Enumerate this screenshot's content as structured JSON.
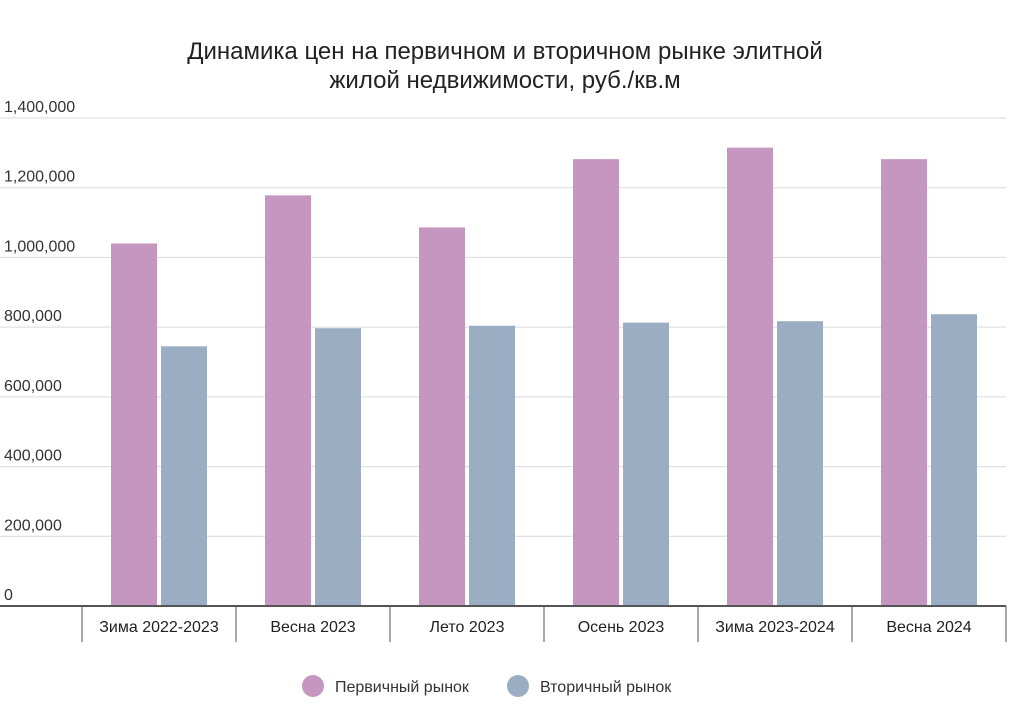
{
  "chart_data": {
    "type": "bar",
    "title_lines": [
      "Динамика цен на первичном и вторичном рынке элитной",
      "жилой недвижимости, руб./кв.м"
    ],
    "categories": [
      "Зима 2022-2023",
      "Весна 2023",
      "Лето 2023",
      "Осень 2023",
      "Зима 2023-2024",
      "Весна 2024"
    ],
    "series": [
      {
        "name": "Первичный рынок",
        "color": "#c596bf",
        "values": [
          1040000,
          1178000,
          1086000,
          1282000,
          1315000,
          1282000
        ]
      },
      {
        "name": "Вторичный рынок",
        "color": "#9aadc3",
        "values": [
          745000,
          797000,
          804000,
          813000,
          817000,
          837000
        ]
      }
    ],
    "ylim": [
      0,
      1400000
    ],
    "yticks": [
      {
        "value": 0,
        "label": "0"
      },
      {
        "value": 200000,
        "label": "200,000"
      },
      {
        "value": 400000,
        "label": "400,000"
      },
      {
        "value": 600000,
        "label": "600,000"
      },
      {
        "value": 800000,
        "label": "800,000"
      },
      {
        "value": 1000000,
        "label": "1,000,000"
      },
      {
        "value": 1200000,
        "label": "1,200,000"
      },
      {
        "value": 1400000,
        "label": "1,400,000"
      }
    ],
    "grid": true,
    "legend_position": "bottom-center"
  }
}
